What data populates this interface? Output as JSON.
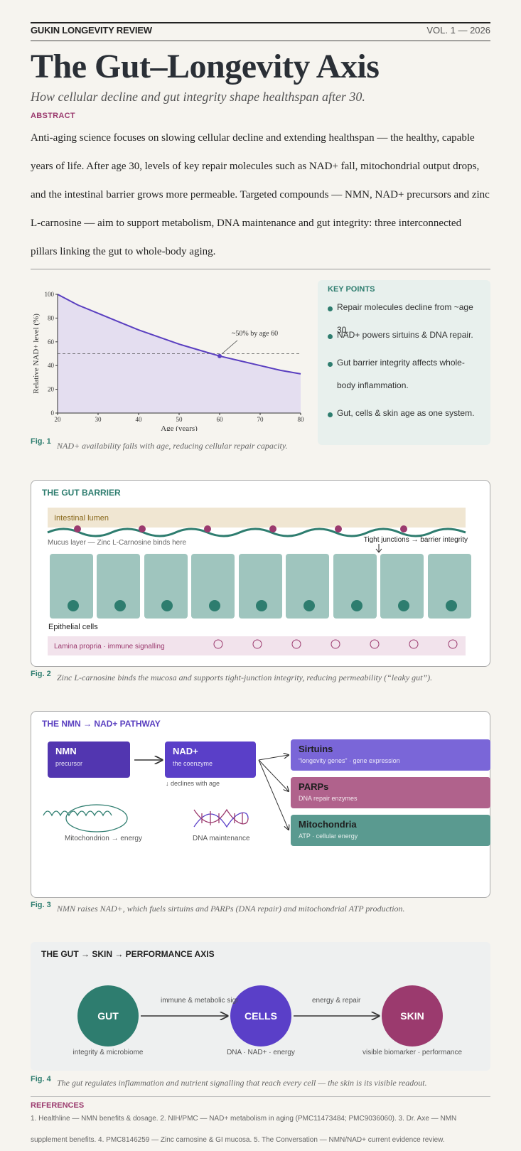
{
  "masthead": {
    "publication": "GUKIN LONGEVITY REVIEW",
    "volume": "VOL. 1 — 2026"
  },
  "title": "The Gut–Longevity Axis",
  "subtitle": "How cellular decline and gut integrity shape healthspan after 30.",
  "abstract": {
    "label": "ABSTRACT",
    "text": "Anti-aging science focuses on slowing cellular decline and extending healthspan — the healthy, capable years of life. After age 30, levels of key repair molecules such as NAD+ fall, mitochondrial output drops, and the intestinal barrier grows more permeable. Targeted compounds — NMN, NAD+ precursors and zinc L-carnosine — aim to support metabolism, DNA maintenance and gut integrity: three interconnected pillars linking the gut to whole-body aging."
  },
  "chart_data": {
    "type": "area",
    "xlabel": "Age (years)",
    "ylabel": "Relative NAD+ level (%)",
    "xlim": [
      20,
      80
    ],
    "ylim": [
      0,
      100
    ],
    "xticks": [
      20,
      30,
      40,
      50,
      60,
      70,
      80
    ],
    "yticks": [
      0,
      20,
      40,
      60,
      80,
      100
    ],
    "x": [
      20,
      25,
      30,
      35,
      40,
      45,
      50,
      55,
      60,
      65,
      70,
      75,
      80
    ],
    "y": [
      100,
      91,
      84,
      77,
      70,
      64,
      58,
      53,
      48,
      44,
      40,
      36,
      33
    ],
    "reference_line": 50,
    "annotation": {
      "text": "~50% by age 60",
      "x": 60,
      "y": 48
    },
    "colors": {
      "line": "#5a3fc0",
      "fill": "#e4def0",
      "ref": "#555555"
    }
  },
  "fig1": {
    "label": "Fig. 1",
    "caption": "NAD+ availability falls with age, reducing cellular repair capacity."
  },
  "key_points": {
    "title": "KEY POINTS",
    "items": [
      "Repair molecules decline from ~age 30.",
      "NAD+ powers sirtuins & DNA repair.",
      "Gut barrier integrity affects whole-body inflammation.",
      "Gut, cells & skin age as one system."
    ]
  },
  "gut_barrier": {
    "title": "THE GUT BARRIER",
    "lumen": "Intestinal lumen",
    "mucus": "Mucus layer — Zinc L-Carnosine binds here",
    "tight": "Tight junctions → barrier integrity",
    "cells_label": "Epithelial cells",
    "lamina": "Lamina propria · immune signalling",
    "colors": {
      "lumen": "#f0e6d2",
      "cell": "#9fc5be",
      "nucleus": "#2e7d6f",
      "wave": "#2e7d6f",
      "dot": "#9b3a6e",
      "lamina": "#f2e3ec"
    }
  },
  "fig2": {
    "label": "Fig. 2",
    "caption": "Zinc L-carnosine binds the mucosa and supports tight-junction integrity, reducing permeability (“leaky gut”)."
  },
  "pathway": {
    "title": "THE NMN → NAD+ PATHWAY",
    "nmn": {
      "title": "NMN",
      "sub": "precursor"
    },
    "nad": {
      "title": "NAD+",
      "sub": "the coenzyme",
      "note": "↓ declines with age"
    },
    "targets": [
      {
        "title": "Sirtuins",
        "sub": "“longevity genes” · gene expression",
        "color": "#7a66d8"
      },
      {
        "title": "PARPs",
        "sub": "DNA repair enzymes",
        "color": "#b0628c"
      },
      {
        "title": "Mitochondria",
        "sub": "ATP · cellular energy",
        "color": "#5a9a90"
      }
    ],
    "mito_label": "Mitochondrion → energy",
    "dna_label": "DNA maintenance"
  },
  "fig3": {
    "label": "Fig. 3",
    "caption": "NMN raises NAD+, which fuels sirtuins and PARPs (DNA repair) and mitochondrial ATP production."
  },
  "axis": {
    "title": "THE GUT → SKIN → PERFORMANCE AXIS",
    "nodes": [
      {
        "label": "GUT",
        "sub": "integrity & microbiome",
        "color": "#2e7d6f"
      },
      {
        "label": "CELLS",
        "sub": "DNA · NAD+ · energy",
        "color": "#5a3fc8"
      },
      {
        "label": "SKIN",
        "sub": "visible biomarker · performance",
        "color": "#9b3a6e"
      }
    ],
    "links": [
      "immune & metabolic signals",
      "energy & repair"
    ]
  },
  "fig4": {
    "label": "Fig. 4",
    "caption": "The gut regulates inflammation and nutrient signalling that reach every cell — the skin is its visible readout."
  },
  "references": {
    "label": "REFERENCES",
    "text": "1. Healthline — NMN benefits & dosage. 2. NIH/PMC — NAD+ metabolism in aging (PMC11473484; PMC9036060). 3. Dr. Axe — NMN supplement benefits. 4. PMC8146259 — Zinc carnosine & GI mucosa. 5. The Conversation — NMN/NAD+ current evidence review."
  }
}
